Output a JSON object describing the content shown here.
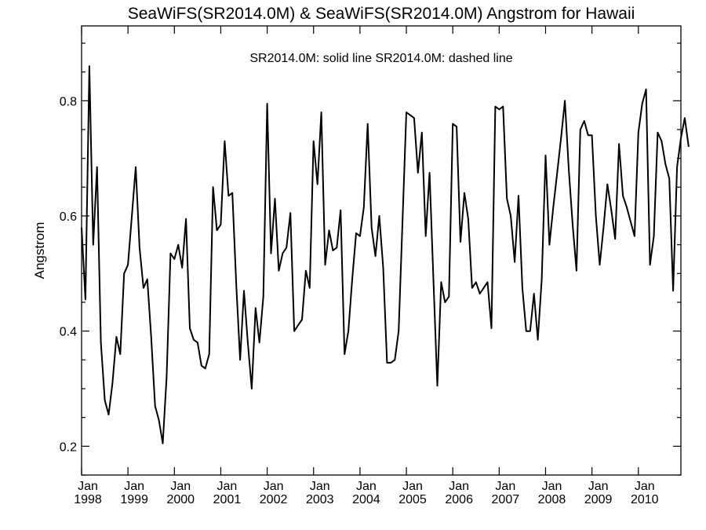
{
  "chart_data": {
    "type": "line",
    "title": "SeaWiFS(SR2014.0M) & SeaWiFS(SR2014.0M)  Angstrom for Hawaii",
    "legend_text": "SR2014.0M: solid line   SR2014.0M: dashed line",
    "ylabel": "Angstrom",
    "xlabel": "",
    "x_start": "1998-01",
    "x_end": "2010-12",
    "xlim": [
      "1998-01",
      "2010-12"
    ],
    "ylim": [
      0.15,
      0.93
    ],
    "y_ticks": [
      {
        "value": 0.2,
        "label": "0.2"
      },
      {
        "value": 0.4,
        "label": "0.4"
      },
      {
        "value": 0.6,
        "label": "0.6"
      },
      {
        "value": 0.8,
        "label": "0.8"
      }
    ],
    "x_tick_labels": [
      {
        "month": "Jan",
        "year": "1998"
      },
      {
        "month": "Jan",
        "year": "1999"
      },
      {
        "month": "Jan",
        "year": "2000"
      },
      {
        "month": "Jan",
        "year": "2001"
      },
      {
        "month": "Jan",
        "year": "2002"
      },
      {
        "month": "Jan",
        "year": "2003"
      },
      {
        "month": "Jan",
        "year": "2004"
      },
      {
        "month": "Jan",
        "year": "2005"
      },
      {
        "month": "Jan",
        "year": "2006"
      },
      {
        "month": "Jan",
        "year": "2007"
      },
      {
        "month": "Jan",
        "year": "2008"
      },
      {
        "month": "Jan",
        "year": "2009"
      },
      {
        "month": "Jan",
        "year": "2010"
      }
    ],
    "grid": false,
    "series": [
      {
        "name": "SR2014.0M",
        "style": "solid",
        "color": "#000000",
        "values": [
          0.58,
          0.455,
          0.86,
          0.55,
          0.685,
          0.38,
          0.28,
          0.255,
          0.31,
          0.39,
          0.36,
          0.5,
          0.515,
          0.6,
          0.685,
          0.545,
          0.475,
          0.49,
          0.39,
          0.27,
          0.245,
          0.205,
          0.32,
          0.535,
          0.525,
          0.55,
          0.51,
          0.595,
          0.405,
          0.385,
          0.38,
          0.34,
          0.335,
          0.36,
          0.65,
          0.575,
          0.585,
          0.73,
          0.635,
          0.64,
          0.48,
          0.35,
          0.47,
          0.38,
          0.3,
          0.44,
          0.38,
          0.46,
          0.795,
          0.535,
          0.63,
          0.505,
          0.535,
          0.545,
          0.605,
          0.4,
          0.41,
          0.42,
          0.505,
          0.475,
          0.73,
          0.655,
          0.78,
          0.515,
          0.575,
          0.54,
          0.545,
          0.61,
          0.36,
          0.4,
          0.49,
          0.57,
          0.565,
          0.615,
          0.76,
          0.58,
          0.53,
          0.6,
          0.51,
          0.345,
          0.345,
          0.35,
          0.4,
          0.59,
          0.78,
          0.775,
          0.77,
          0.675,
          0.745,
          0.565,
          0.675,
          0.49,
          0.305,
          0.485,
          0.45,
          0.46,
          0.76,
          0.755,
          0.555,
          0.64,
          0.595,
          0.475,
          0.485,
          0.465,
          0.475,
          0.485,
          0.405,
          0.79,
          0.785,
          0.79,
          0.63,
          0.6,
          0.52,
          0.635,
          0.475,
          0.4,
          0.4,
          0.465,
          0.385,
          0.49,
          0.705,
          0.55,
          0.615,
          0.675,
          0.735,
          0.8,
          0.68,
          0.585,
          0.505,
          0.75,
          0.765,
          0.74,
          0.74,
          0.6,
          0.515,
          0.58,
          0.655,
          0.61,
          0.56,
          0.725,
          0.635,
          0.615,
          0.59,
          0.565,
          0.745,
          0.795,
          0.82,
          0.515,
          0.565,
          0.745,
          0.73,
          0.69,
          0.665,
          0.47,
          0.685,
          0.735,
          0.77,
          0.72
        ]
      }
    ]
  }
}
